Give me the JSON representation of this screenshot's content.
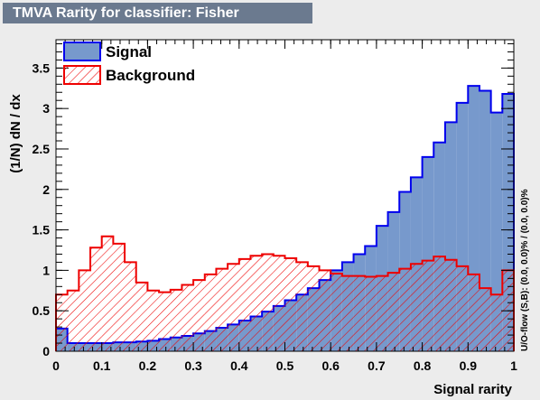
{
  "chart_data": {
    "type": "histogram",
    "title": "TMVA Rarity for classifier: Fisher",
    "xlabel": "Signal rarity",
    "ylabel": "(1/N) dN / dx",
    "side_label": "U/O-flow (S,B): (0.0, 0.0)% / (0.0, 0.0)%",
    "xlim": [
      0,
      1
    ],
    "ylim": [
      0,
      3.85
    ],
    "bin_width": 0.025,
    "x_ticks": [
      "0",
      "0.1",
      "0.2",
      "0.3",
      "0.4",
      "0.5",
      "0.6",
      "0.7",
      "0.8",
      "0.9",
      "1"
    ],
    "y_ticks": [
      "0",
      "0.5",
      "1",
      "1.5",
      "2",
      "2.5",
      "3",
      "3.5"
    ],
    "legend_position": "top-left",
    "series": [
      {
        "name": "Signal",
        "line_color": "#0000ee",
        "fill_color": "#7799cc",
        "fill_style": "solid",
        "values": [
          0.28,
          0.1,
          0.1,
          0.1,
          0.1,
          0.11,
          0.11,
          0.12,
          0.13,
          0.15,
          0.17,
          0.19,
          0.22,
          0.25,
          0.29,
          0.33,
          0.38,
          0.43,
          0.49,
          0.56,
          0.63,
          0.7,
          0.78,
          0.88,
          1.0,
          1.1,
          1.2,
          1.3,
          1.55,
          1.72,
          1.97,
          2.15,
          2.4,
          2.58,
          2.83,
          3.07,
          3.28,
          3.22,
          2.95,
          3.18
        ]
      },
      {
        "name": "Background",
        "line_color": "#ee0000",
        "fill_color": "#ee0000",
        "fill_style": "hatched",
        "values": [
          0.7,
          0.75,
          1.0,
          1.28,
          1.42,
          1.33,
          1.1,
          0.85,
          0.75,
          0.73,
          0.76,
          0.82,
          0.88,
          0.95,
          1.02,
          1.08,
          1.14,
          1.18,
          1.2,
          1.18,
          1.15,
          1.1,
          1.05,
          1.0,
          0.96,
          0.93,
          0.93,
          0.92,
          0.93,
          0.97,
          1.02,
          1.08,
          1.12,
          1.17,
          1.13,
          1.05,
          0.95,
          0.78,
          0.7,
          1.0
        ]
      }
    ]
  }
}
